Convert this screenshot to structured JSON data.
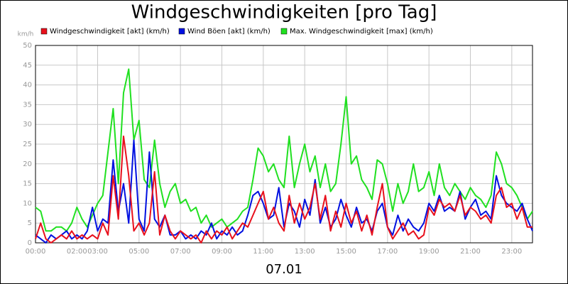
{
  "chart_data": {
    "type": "line",
    "title": "Windgeschwindigkeiten [pro Tag]",
    "ylabel": "km/h",
    "xlabel": "07.01",
    "xlim": [
      0,
      24
    ],
    "xticks": [
      {
        "value": 0,
        "label": "00:00"
      },
      {
        "value": 2,
        "label": "02:00"
      },
      {
        "value": 3,
        "label": "03:00"
      },
      {
        "value": 5,
        "label": "05:00"
      },
      {
        "value": 7,
        "label": "07:00"
      },
      {
        "value": 9,
        "label": "09:00"
      },
      {
        "value": 11,
        "label": "11:00"
      },
      {
        "value": 13,
        "label": "13:00"
      },
      {
        "value": 15,
        "label": "15:00"
      },
      {
        "value": 17,
        "label": "17:00"
      },
      {
        "value": 19,
        "label": "19:00"
      },
      {
        "value": 21,
        "label": "21:00"
      },
      {
        "value": 23,
        "label": "23:00"
      }
    ],
    "ylim": [
      0,
      50
    ],
    "yticks": [
      0,
      5,
      10,
      15,
      20,
      25,
      30,
      35,
      40,
      45,
      50
    ],
    "grid": true,
    "x": [
      0,
      0.25,
      0.5,
      0.75,
      1,
      1.25,
      1.5,
      1.75,
      2,
      2.25,
      2.5,
      2.75,
      3,
      3.25,
      3.5,
      3.75,
      4,
      4.25,
      4.5,
      4.75,
      5,
      5.25,
      5.5,
      5.75,
      6,
      6.25,
      6.5,
      6.75,
      7,
      7.25,
      7.5,
      7.75,
      8,
      8.25,
      8.5,
      8.75,
      9,
      9.25,
      9.5,
      9.75,
      10,
      10.25,
      10.5,
      10.75,
      11,
      11.25,
      11.5,
      11.75,
      12,
      12.25,
      12.5,
      12.75,
      13,
      13.25,
      13.5,
      13.75,
      14,
      14.25,
      14.5,
      14.75,
      15,
      15.25,
      15.5,
      15.75,
      16,
      16.25,
      16.5,
      16.75,
      17,
      17.25,
      17.5,
      17.75,
      18,
      18.25,
      18.5,
      18.75,
      19,
      19.25,
      19.5,
      19.75,
      20,
      20.25,
      20.5,
      20.75,
      21,
      21.25,
      21.5,
      21.75,
      22,
      22.25,
      22.5,
      22.75,
      23,
      23.25,
      23.5,
      23.75,
      24
    ],
    "series": [
      {
        "name": "Windgeschwindigkeit [akt] (km/h)",
        "color": "#e8101c",
        "values": [
          1,
          5,
          1,
          0,
          1,
          2,
          1,
          3,
          1,
          2,
          1,
          2,
          1,
          5,
          2,
          17,
          6,
          27,
          17,
          3,
          5,
          2,
          5,
          18,
          2,
          7,
          3,
          1,
          3,
          2,
          1,
          2,
          0,
          3,
          1,
          3,
          2,
          4,
          1,
          3,
          5,
          4,
          7,
          10,
          13,
          6,
          9,
          5,
          3,
          12,
          5,
          10,
          6,
          9,
          15,
          6,
          12,
          3,
          8,
          4,
          10,
          5,
          8,
          3,
          7,
          2,
          9,
          15,
          4,
          1,
          3,
          5,
          2,
          3,
          1,
          2,
          9,
          7,
          11,
          9,
          10,
          8,
          12,
          7,
          9,
          8,
          6,
          7,
          5,
          12,
          14,
          9,
          10,
          6,
          9,
          4,
          4
        ]
      },
      {
        "name": "Wind Böen [akt] (km/h)",
        "color": "#0010e0",
        "values": [
          2,
          1,
          0,
          2,
          1,
          2,
          3,
          1,
          2,
          1,
          3,
          9,
          3,
          6,
          5,
          21,
          8,
          15,
          5,
          26,
          6,
          3,
          23,
          6,
          4,
          7,
          2,
          2,
          3,
          1,
          2,
          1,
          3,
          2,
          5,
          1,
          3,
          2,
          4,
          2,
          3,
          7,
          12,
          13,
          10,
          6,
          7,
          14,
          4,
          10,
          8,
          4,
          11,
          7,
          16,
          5,
          9,
          4,
          6,
          11,
          7,
          4,
          9,
          5,
          6,
          3,
          8,
          10,
          4,
          2,
          7,
          3,
          6,
          4,
          3,
          5,
          10,
          8,
          12,
          8,
          9,
          8,
          13,
          6,
          9,
          11,
          7,
          8,
          6,
          17,
          12,
          10,
          9,
          8,
          10,
          6,
          3
        ]
      },
      {
        "name": "Max. Windgeschwindigkeit [max] (km/h)",
        "color": "#20e020",
        "values": [
          9,
          8,
          3,
          3,
          4,
          4,
          3,
          5,
          9,
          6,
          4,
          7,
          10,
          12,
          23,
          34,
          15,
          38,
          44,
          26,
          31,
          16,
          14,
          26,
          15,
          9,
          13,
          15,
          10,
          11,
          8,
          9,
          5,
          7,
          4,
          5,
          6,
          4,
          5,
          6,
          8,
          9,
          16,
          24,
          22,
          18,
          20,
          16,
          14,
          27,
          14,
          20,
          25,
          18,
          22,
          14,
          20,
          13,
          15,
          25,
          37,
          20,
          22,
          16,
          14,
          11,
          21,
          20,
          15,
          8,
          15,
          10,
          13,
          20,
          13,
          14,
          18,
          12,
          20,
          14,
          12,
          15,
          13,
          11,
          14,
          12,
          11,
          9,
          12,
          23,
          20,
          15,
          14,
          12,
          9,
          6,
          8
        ]
      }
    ]
  }
}
